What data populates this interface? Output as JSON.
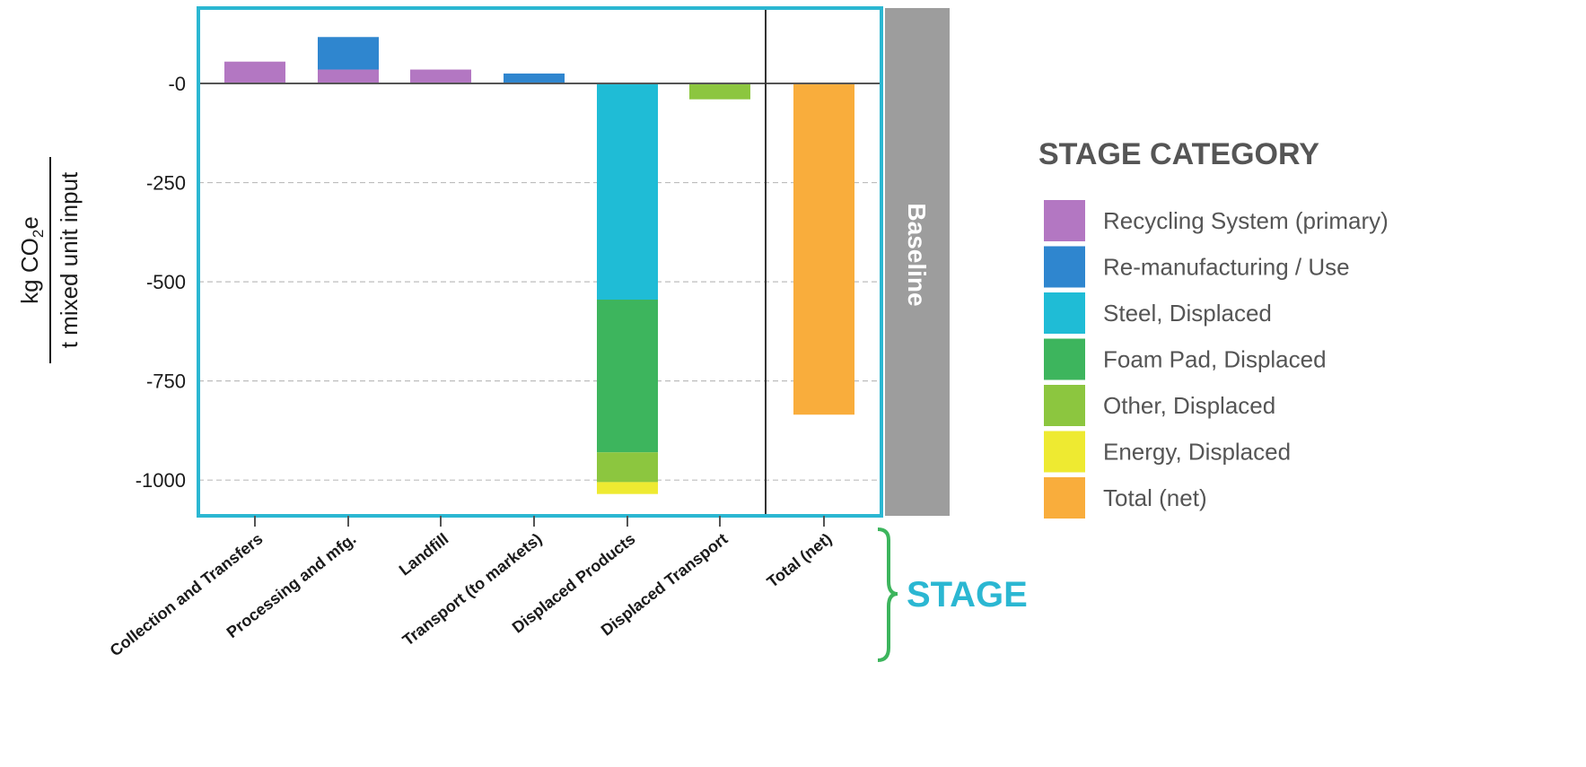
{
  "chart_data": {
    "type": "bar",
    "stacked": true,
    "ylabel_numerator": "kg CO",
    "ylabel_subscript": "2",
    "ylabel_suffix": "e",
    "ylabel_denominator": "t mixed unit input",
    "y_ticks": [
      {
        "value": 0,
        "label": "-0"
      },
      {
        "value": -250,
        "label": "-250"
      },
      {
        "value": -500,
        "label": "-500"
      },
      {
        "value": -750,
        "label": "-750"
      },
      {
        "value": -1000,
        "label": "-1000"
      }
    ],
    "ylim": [
      -1090,
      190
    ],
    "grid": true,
    "panel_label": "Baseline",
    "x_axis_title": "STAGE",
    "categories": [
      "Collection and Transfers",
      "Processing and mfg.",
      "Landfill",
      "Transport (to markets)",
      "Displaced Products",
      "Displaced Transport",
      "Total (net)"
    ],
    "series": [
      {
        "name": "Recycling System (primary)",
        "color": "#b377c2",
        "values": [
          55,
          35,
          35,
          0,
          0,
          0,
          0
        ]
      },
      {
        "name": "Re-manufacturing / Use",
        "color": "#2f86cf",
        "values": [
          0,
          82,
          0,
          25,
          0,
          0,
          0
        ]
      },
      {
        "name": "Steel, Displaced",
        "color": "#1fbcd6",
        "values": [
          0,
          0,
          0,
          0,
          -545,
          0,
          0
        ]
      },
      {
        "name": "Foam Pad, Displaced",
        "color": "#3db55d",
        "values": [
          0,
          0,
          0,
          0,
          -385,
          0,
          0
        ]
      },
      {
        "name": "Other, Displaced",
        "color": "#8cc63f",
        "values": [
          0,
          0,
          0,
          0,
          -75,
          -40,
          0
        ]
      },
      {
        "name": "Energy, Displaced",
        "color": "#eeea31",
        "values": [
          0,
          0,
          0,
          0,
          -30,
          0,
          0
        ]
      },
      {
        "name": "Total (net)",
        "color": "#f9ad3c",
        "values": [
          0,
          0,
          0,
          0,
          0,
          0,
          -835
        ]
      }
    ],
    "legend_title": "STAGE CATEGORY",
    "legend_position": "right"
  }
}
